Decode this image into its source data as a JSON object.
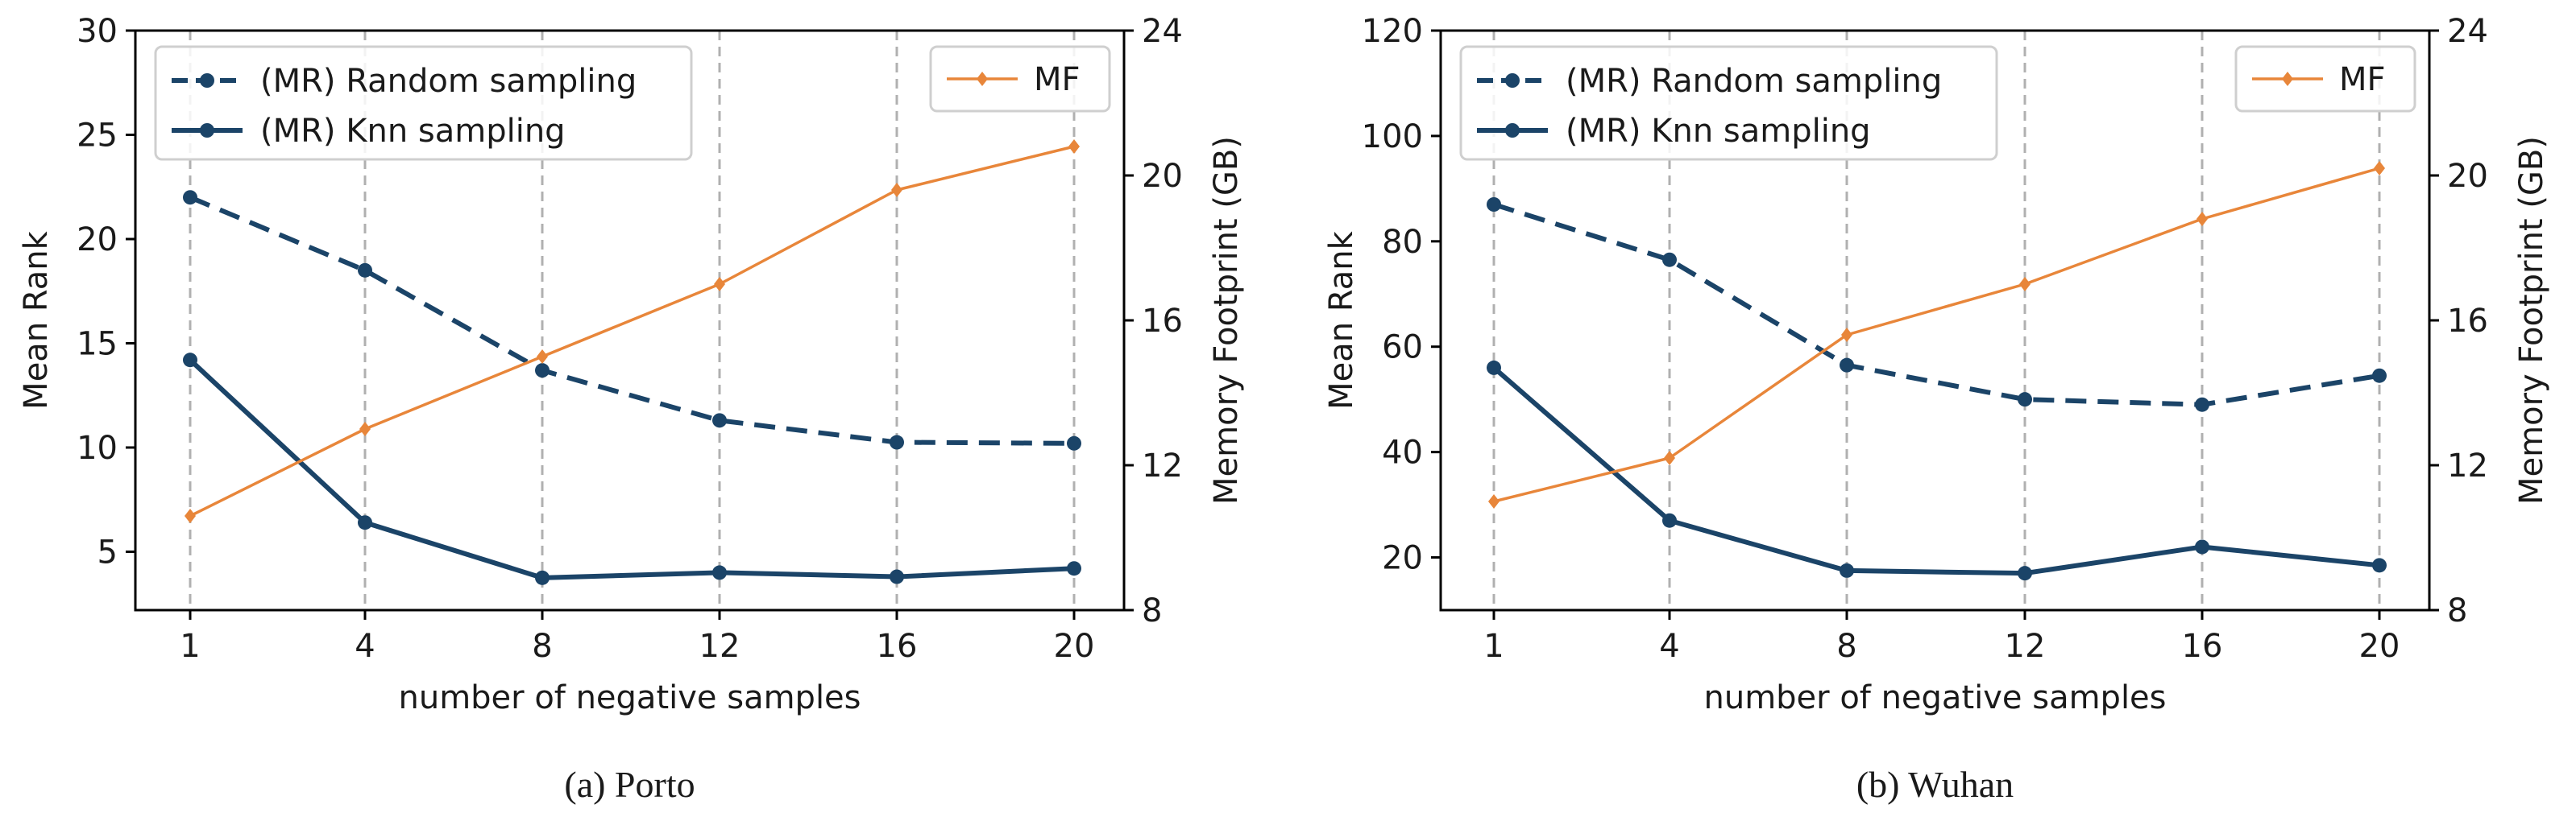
{
  "chart_data": [
    {
      "type": "line",
      "caption": "(a) Porto",
      "categories": [
        "1",
        "4",
        "8",
        "12",
        "16",
        "20"
      ],
      "xlabel": "number of negative samples",
      "ylabel_left": "Mean Rank",
      "ylabel_right": "Memory Footprint (GB)",
      "ylim_left": [
        2.2,
        30
      ],
      "yticks_left": [
        "5",
        "10",
        "15",
        "20",
        "25",
        "30"
      ],
      "ylim_right": [
        8,
        24
      ],
      "yticks_right": [
        "8",
        "12",
        "16",
        "20",
        "24"
      ],
      "series": [
        {
          "name": "(MR) Random sampling",
          "axis": "left",
          "style": "dashed",
          "color": "#1b4468",
          "marker": "circle",
          "values": [
            22.0,
            18.5,
            13.7,
            11.3,
            10.25,
            10.2
          ]
        },
        {
          "name": "(MR) Knn sampling",
          "axis": "left",
          "style": "solid",
          "color": "#1b4468",
          "marker": "circle",
          "values": [
            14.2,
            6.4,
            3.75,
            4.0,
            3.8,
            4.2
          ]
        },
        {
          "name": "MF",
          "axis": "right",
          "style": "solid",
          "color": "#e8863a",
          "marker": "diamond",
          "values": [
            10.6,
            13.0,
            15.0,
            17.0,
            19.6,
            20.8
          ]
        }
      ]
    },
    {
      "type": "line",
      "caption": "(b) Wuhan",
      "categories": [
        "1",
        "4",
        "8",
        "12",
        "16",
        "20"
      ],
      "xlabel": "number of negative samples",
      "ylabel_left": "Mean Rank",
      "ylabel_right": "Memory Footprint (GB)",
      "ylim_left": [
        10,
        120
      ],
      "yticks_left": [
        "20",
        "40",
        "60",
        "80",
        "100",
        "120"
      ],
      "ylim_right": [
        8,
        24
      ],
      "yticks_right": [
        "8",
        "12",
        "16",
        "20",
        "24"
      ],
      "series": [
        {
          "name": "(MR) Random sampling",
          "axis": "left",
          "style": "dashed",
          "color": "#1b4468",
          "marker": "circle",
          "values": [
            87,
            76.5,
            56.5,
            50,
            49,
            54.5
          ]
        },
        {
          "name": "(MR) Knn sampling",
          "axis": "left",
          "style": "solid",
          "color": "#1b4468",
          "marker": "circle",
          "values": [
            56,
            27,
            17.5,
            17,
            22,
            18.5
          ]
        },
        {
          "name": "MF",
          "axis": "right",
          "style": "solid",
          "color": "#e8863a",
          "marker": "diamond",
          "values": [
            11.0,
            12.2,
            15.6,
            17.0,
            18.8,
            20.2
          ]
        }
      ]
    }
  ]
}
